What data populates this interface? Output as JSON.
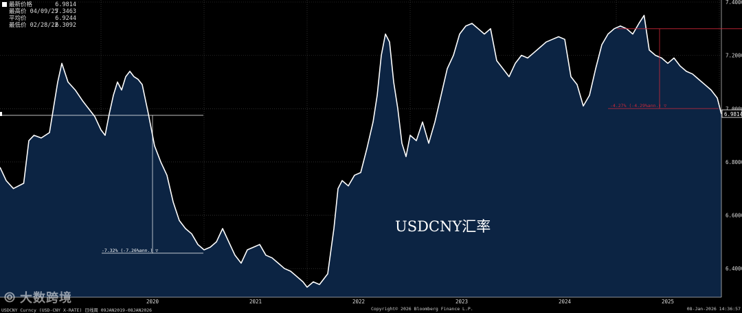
{
  "legend": {
    "rows": [
      {
        "label": "最新价格",
        "value": "6.9814",
        "swatch": true
      },
      {
        "label": "最高价 04/09/25",
        "value": "7.3463",
        "swatch": false
      },
      {
        "label": "平均价",
        "value": "6.9244",
        "swatch": false
      },
      {
        "label": "最低价 02/28/22",
        "value": "6.3092",
        "swatch": false
      }
    ]
  },
  "last_price_tag": "6.9814",
  "watermark": "大数跨境",
  "footer": {
    "left": "USDCNY Curncy (USD-CNY X-RATE) 日线周 09JAN2019-08JAN2026",
    "center": "Copyright© 2026 Bloomberg Finance L.P.",
    "right": "08-Jan-2026 14:36:57"
  },
  "colors": {
    "background": "#000000",
    "area_fill": "#0c2443",
    "line": "#ffffff",
    "grid": "#4a4a4a",
    "annotation_white": "#ffffff",
    "annotation_red": "#d0283a"
  },
  "chart_data": {
    "type": "area",
    "title": "USDCNY汇率",
    "xlabel": "",
    "ylabel": "",
    "y_axis_position": "right",
    "ylim": [
      6.3,
      7.4
    ],
    "yticks": [
      6.4,
      6.6,
      6.8,
      7.0,
      7.2,
      7.4
    ],
    "ytick_labels": [
      "6.4000",
      "6.6000",
      "6.8000",
      "7.0000",
      "7.2000",
      "7.4000"
    ],
    "xlim": [
      2019.02,
      2026.02
    ],
    "xticks": [
      2020,
      2021,
      2022,
      2023,
      2024,
      2025
    ],
    "xtick_labels": [
      "2020",
      "2021",
      "2022",
      "2023",
      "2024",
      "2025"
    ],
    "grid": true,
    "series": [
      {
        "x": [
          2019.02,
          2019.08,
          2019.15,
          2019.25,
          2019.3,
          2019.35,
          2019.42,
          2019.5,
          2019.58,
          2019.62,
          2019.68,
          2019.75,
          2019.82,
          2019.88,
          2019.94,
          2020.0,
          2020.04,
          2020.08,
          2020.12,
          2020.16,
          2020.2,
          2020.24,
          2020.28,
          2020.32,
          2020.36,
          2020.4,
          2020.46,
          2020.52,
          2020.58,
          2020.64,
          2020.7,
          2020.76,
          2020.82,
          2020.88,
          2020.94,
          2021.0,
          2021.06,
          2021.12,
          2021.18,
          2021.24,
          2021.3,
          2021.36,
          2021.42,
          2021.48,
          2021.54,
          2021.6,
          2021.66,
          2021.72,
          2021.78,
          2021.84,
          2021.9,
          2021.96,
          2022.0,
          2022.06,
          2022.12,
          2022.16,
          2022.2,
          2022.26,
          2022.3,
          2022.34,
          2022.4,
          2022.46,
          2022.52,
          2022.58,
          2022.64,
          2022.68,
          2022.72,
          2022.76,
          2022.8,
          2022.84,
          2022.88,
          2022.92,
          2022.96,
          2023.0,
          2023.06,
          2023.12,
          2023.18,
          2023.24,
          2023.3,
          2023.36,
          2023.42,
          2023.48,
          2023.54,
          2023.6,
          2023.66,
          2023.72,
          2023.78,
          2023.84,
          2023.9,
          2023.96,
          2024.02,
          2024.08,
          2024.14,
          2024.2,
          2024.26,
          2024.32,
          2024.38,
          2024.44,
          2024.5,
          2024.56,
          2024.62,
          2024.68,
          2024.74,
          2024.8,
          2024.86,
          2024.92,
          2024.98,
          2025.04,
          2025.1,
          2025.16,
          2025.22,
          2025.27,
          2025.32,
          2025.38,
          2025.44,
          2025.5,
          2025.56,
          2025.62,
          2025.68,
          2025.74,
          2025.8,
          2025.86,
          2025.92,
          2025.98,
          2026.02
        ],
        "y": [
          6.78,
          6.73,
          6.7,
          6.72,
          6.88,
          6.9,
          6.89,
          6.91,
          7.1,
          7.17,
          7.1,
          7.07,
          7.03,
          7.0,
          6.97,
          6.92,
          6.9,
          6.98,
          7.05,
          7.1,
          7.07,
          7.12,
          7.14,
          7.12,
          7.11,
          7.09,
          6.98,
          6.86,
          6.8,
          6.75,
          6.65,
          6.58,
          6.55,
          6.53,
          6.49,
          6.47,
          6.48,
          6.5,
          6.55,
          6.5,
          6.45,
          6.42,
          6.47,
          6.48,
          6.49,
          6.45,
          6.44,
          6.42,
          6.4,
          6.39,
          6.37,
          6.35,
          6.33,
          6.35,
          6.34,
          6.36,
          6.38,
          6.55,
          6.7,
          6.73,
          6.71,
          6.75,
          6.76,
          6.85,
          6.95,
          7.05,
          7.2,
          7.28,
          7.25,
          7.1,
          7.0,
          6.87,
          6.82,
          6.9,
          6.88,
          6.95,
          6.87,
          6.95,
          7.05,
          7.15,
          7.2,
          7.28,
          7.31,
          7.32,
          7.3,
          7.28,
          7.3,
          7.18,
          7.15,
          7.12,
          7.17,
          7.2,
          7.19,
          7.21,
          7.23,
          7.25,
          7.26,
          7.27,
          7.26,
          7.12,
          7.09,
          7.01,
          7.05,
          7.15,
          7.24,
          7.28,
          7.3,
          7.31,
          7.3,
          7.28,
          7.32,
          7.35,
          7.22,
          7.2,
          7.19,
          7.17,
          7.19,
          7.16,
          7.14,
          7.13,
          7.11,
          7.09,
          7.07,
          7.04,
          6.98
        ]
      }
    ],
    "annotations": [
      {
        "label": "-7.32% (-7.26%ann.)",
        "color": "white",
        "from": {
          "x": 2020.35,
          "y": 6.975
        },
        "to": {
          "x": 2020.52,
          "y": 6.46
        }
      },
      {
        "label": "-4.27% (-4.29%ann.)",
        "color": "red",
        "from": {
          "x": 2025.01,
          "y": 7.3
        },
        "to": {
          "x": 2025.98,
          "y": 6.99
        }
      }
    ]
  }
}
